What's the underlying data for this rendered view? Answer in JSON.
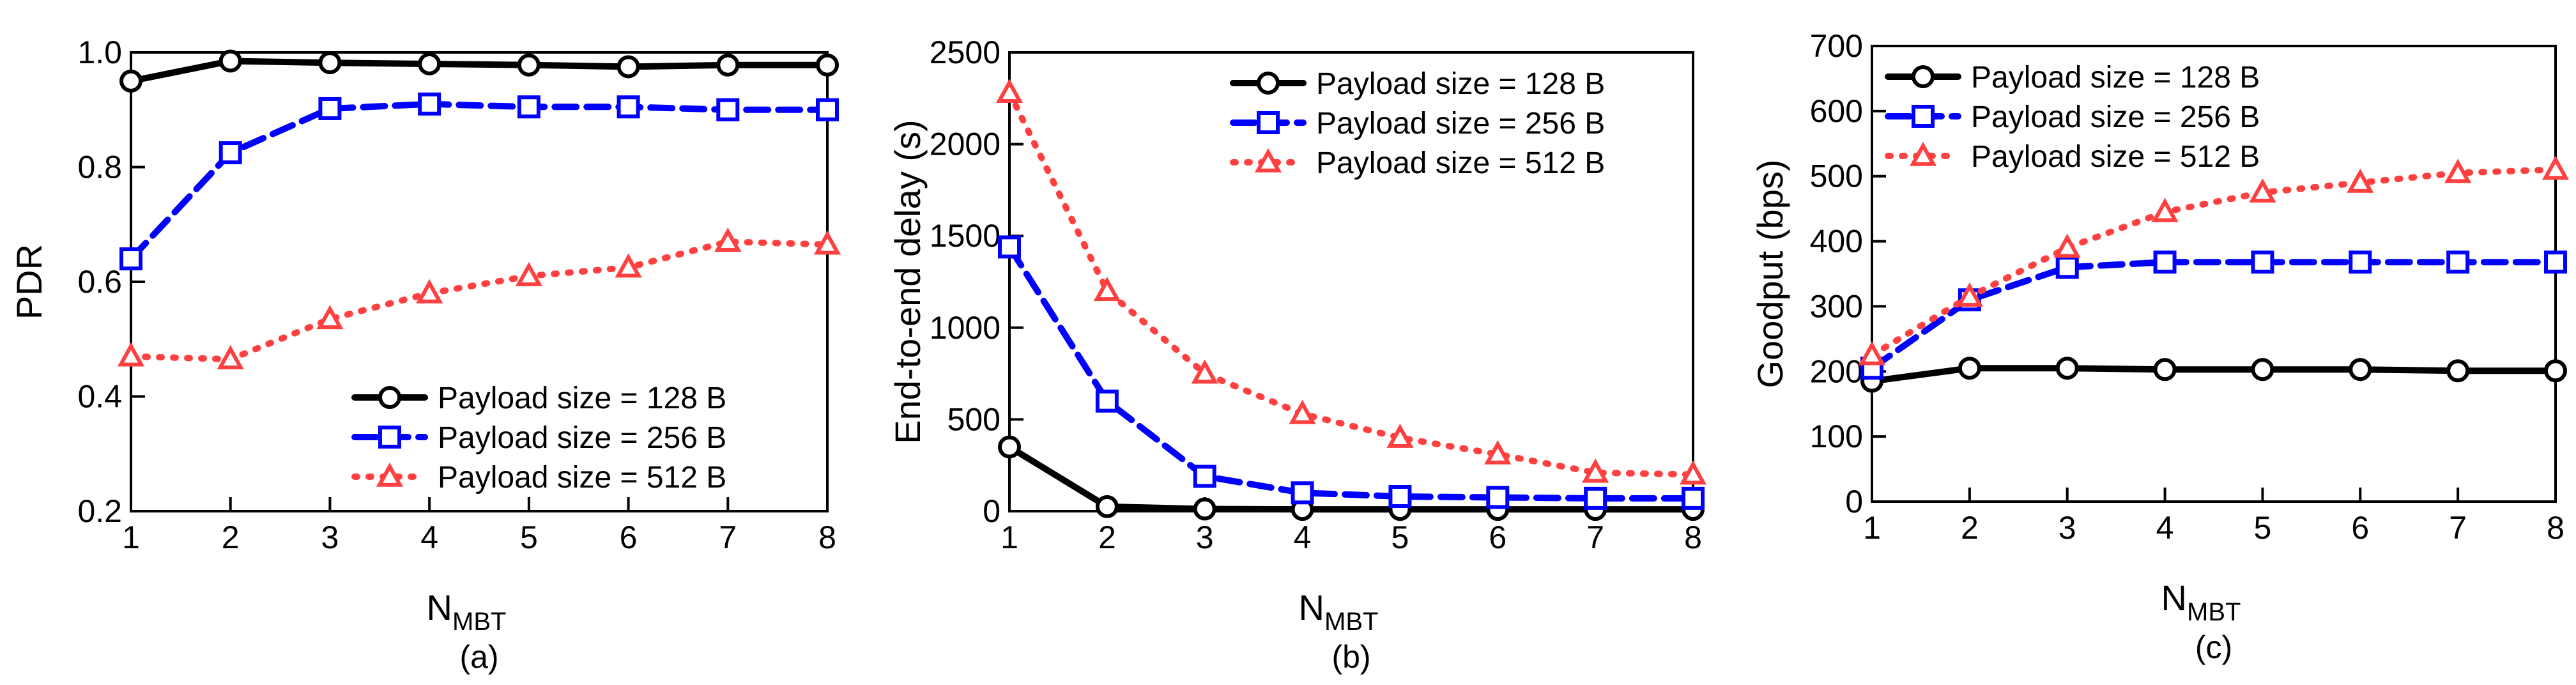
{
  "chart_data": [
    {
      "type": "line",
      "panel": "(a)",
      "xlabel_main": "N",
      "xlabel_sub": "MBT",
      "ylabel": "PDR",
      "x": [
        1,
        2,
        3,
        4,
        5,
        6,
        7,
        8
      ],
      "xlim": [
        1,
        8
      ],
      "ylim": [
        0.2,
        1.0
      ],
      "yticks": [
        0.2,
        0.4,
        0.6,
        0.8,
        1.0
      ],
      "ytick_labels": [
        "0.2",
        "0.4",
        "0.6",
        "0.8",
        "1.0"
      ],
      "legend_position": "bottom-right",
      "series": [
        {
          "name": "Payload size = 128 B",
          "values": [
            0.95,
            0.985,
            0.982,
            0.98,
            0.978,
            0.975,
            0.978,
            0.978
          ]
        },
        {
          "name": "Payload size = 256 B",
          "values": [
            0.64,
            0.825,
            0.902,
            0.91,
            0.905,
            0.905,
            0.9,
            0.9
          ]
        },
        {
          "name": "Payload size = 512 B",
          "values": [
            0.47,
            0.465,
            0.535,
            0.58,
            0.61,
            0.625,
            0.67,
            0.665
          ]
        }
      ]
    },
    {
      "type": "line",
      "panel": "(b)",
      "xlabel_main": "N",
      "xlabel_sub": "MBT",
      "ylabel": "End-to-end delay (s)",
      "x": [
        1,
        2,
        3,
        4,
        5,
        6,
        7,
        8
      ],
      "xlim": [
        1,
        8
      ],
      "ylim": [
        0,
        2500
      ],
      "yticks": [
        0,
        500,
        1000,
        1500,
        2000,
        2500
      ],
      "ytick_labels": [
        "0",
        "500",
        "1000",
        "1500",
        "2000",
        "2500"
      ],
      "legend_position": "top-right",
      "series": [
        {
          "name": "Payload size = 128 B",
          "values": [
            350,
            25,
            12,
            10,
            10,
            10,
            10,
            10
          ]
        },
        {
          "name": "Payload size = 256 B",
          "values": [
            1440,
            600,
            190,
            100,
            80,
            75,
            70,
            70
          ]
        },
        {
          "name": "Payload size = 512 B",
          "values": [
            2280,
            1200,
            750,
            530,
            400,
            310,
            210,
            200
          ]
        }
      ]
    },
    {
      "type": "line",
      "panel": "(c)",
      "xlabel_main": "N",
      "xlabel_sub": "MBT",
      "ylabel": "Goodput (bps)",
      "x": [
        1,
        2,
        3,
        4,
        5,
        6,
        7,
        8
      ],
      "xlim": [
        1,
        8
      ],
      "ylim": [
        0,
        700
      ],
      "yticks": [
        0,
        100,
        200,
        300,
        400,
        500,
        600,
        700
      ],
      "ytick_labels": [
        "0",
        "100",
        "200",
        "300",
        "400",
        "500",
        "600",
        "700"
      ],
      "legend_position": "top-left",
      "series": [
        {
          "name": "Payload size = 128 B",
          "values": [
            185,
            205,
            205,
            203,
            203,
            203,
            201,
            201
          ]
        },
        {
          "name": "Payload size = 256 B",
          "values": [
            205,
            310,
            360,
            368,
            368,
            368,
            368,
            368
          ]
        },
        {
          "name": "Payload size = 512 B",
          "values": [
            225,
            315,
            390,
            445,
            475,
            490,
            505,
            510
          ]
        }
      ]
    }
  ],
  "styles": {
    "series_colors": [
      "#000000",
      "#0000ff",
      "#ff4040"
    ],
    "series_markers": [
      "circle",
      "square",
      "triangle"
    ],
    "series_dash": [
      "solid",
      "dashed",
      "dotted"
    ]
  }
}
